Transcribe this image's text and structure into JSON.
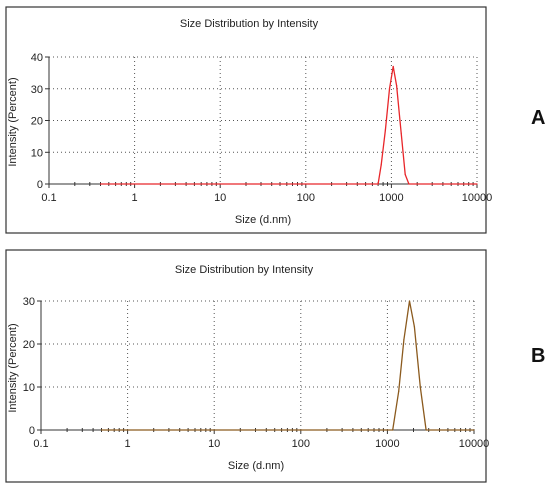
{
  "chart_data": [
    {
      "panel_label": "A",
      "type": "line",
      "title": "Size Distribution by Intensity",
      "xlabel": "Size (d.nm)",
      "ylabel": "Intensity (Percent)",
      "xscale": "log",
      "xlim": [
        0.1,
        10000
      ],
      "ylim": [
        0,
        40
      ],
      "x_ticks": [
        0.1,
        1,
        10,
        100,
        1000,
        10000
      ],
      "x_tick_labels": [
        "0.1",
        "1",
        "10",
        "100",
        "1000",
        "10000"
      ],
      "y_ticks": [
        0,
        10,
        20,
        30,
        40
      ],
      "y_tick_labels": [
        "0",
        "10",
        "20",
        "30",
        "40"
      ],
      "grid": true,
      "series": [
        {
          "color": "#e8262a",
          "x": [
            0.4,
            700,
            760,
            850,
            950,
            1050,
            1150,
            1300,
            1450,
            1600,
            10000
          ],
          "y": [
            0,
            0,
            6,
            17,
            30,
            37,
            31,
            16,
            3,
            0,
            0
          ]
        }
      ]
    },
    {
      "panel_label": "B",
      "type": "line",
      "title": "Size Distribution by Intensity",
      "xlabel": "Size (d.nm)",
      "ylabel": "Intensity (Percent)",
      "xscale": "log",
      "xlim": [
        0.1,
        10000
      ],
      "ylim": [
        0,
        30
      ],
      "x_ticks": [
        0.1,
        1,
        10,
        100,
        1000,
        10000
      ],
      "x_tick_labels": [
        "0.1",
        "1",
        "10",
        "100",
        "1000",
        "10000"
      ],
      "y_ticks": [
        0,
        10,
        20,
        30
      ],
      "y_tick_labels": [
        "0",
        "10",
        "20",
        "30"
      ],
      "grid": true,
      "series": [
        {
          "color": "#8b5a1e",
          "x": [
            0.5,
            1150,
            1350,
            1550,
            1800,
            2050,
            2400,
            2800,
            10000
          ],
          "y": [
            0,
            0,
            9,
            21,
            30,
            24,
            10,
            0,
            0
          ]
        }
      ]
    }
  ]
}
